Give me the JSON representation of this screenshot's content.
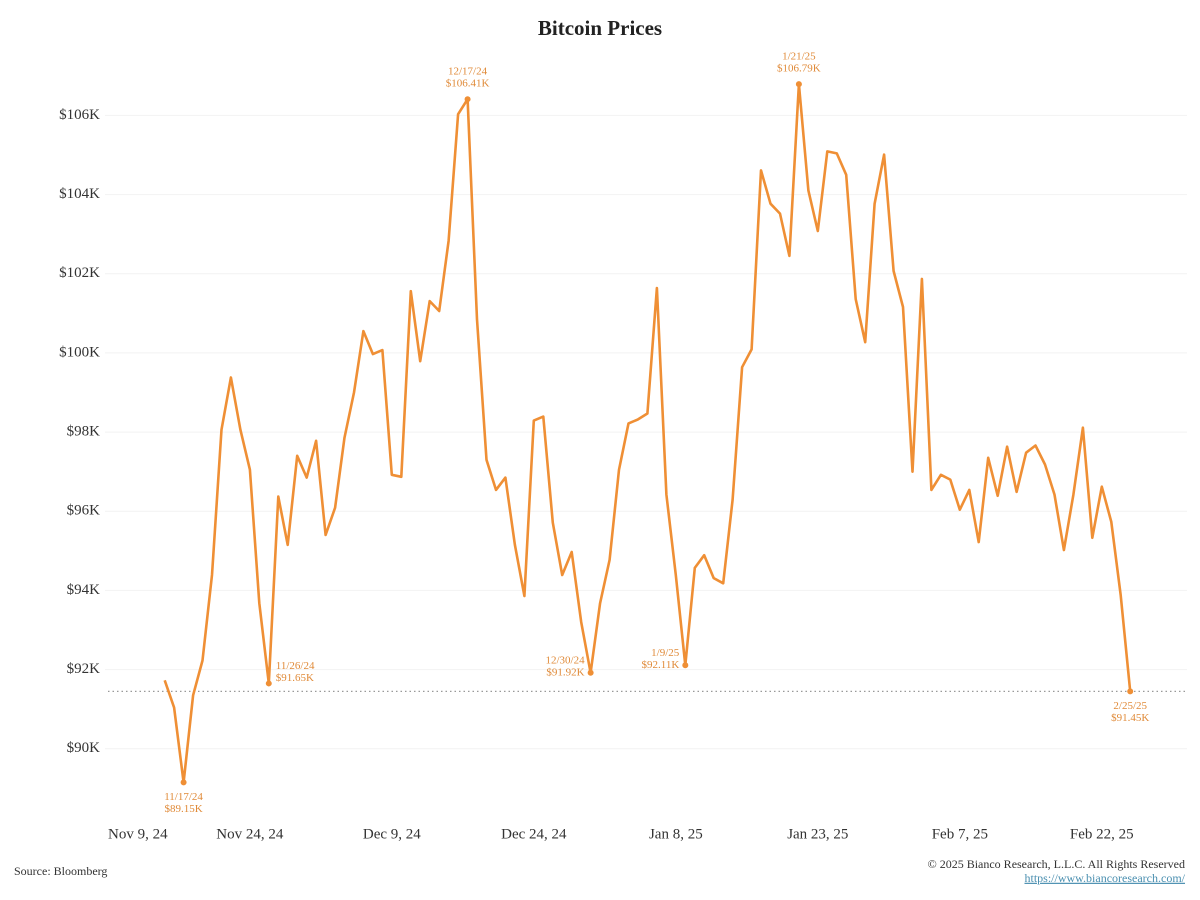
{
  "chart_data": {
    "type": "line",
    "title": "Bitcoin Prices",
    "source": "Source: Bloomberg",
    "copyright": "© 2025 Bianco Research, L.L.C. All Rights Reserved",
    "url": "https://www.biancoresearch.com/",
    "x": [
      "2024-11-15",
      "2024-11-16",
      "2024-11-17",
      "2024-11-18",
      "2024-11-19",
      "2024-11-20",
      "2024-11-21",
      "2024-11-22",
      "2024-11-23",
      "2024-11-24",
      "2024-11-25",
      "2024-11-26",
      "2024-11-27",
      "2024-11-28",
      "2024-11-29",
      "2024-11-30",
      "2024-12-01",
      "2024-12-02",
      "2024-12-03",
      "2024-12-04",
      "2024-12-05",
      "2024-12-06",
      "2024-12-07",
      "2024-12-08",
      "2024-12-09",
      "2024-12-10",
      "2024-12-11",
      "2024-12-12",
      "2024-12-13",
      "2024-12-14",
      "2024-12-15",
      "2024-12-16",
      "2024-12-17",
      "2024-12-18",
      "2024-12-19",
      "2024-12-20",
      "2024-12-21",
      "2024-12-22",
      "2024-12-23",
      "2024-12-24",
      "2024-12-25",
      "2024-12-26",
      "2024-12-27",
      "2024-12-28",
      "2024-12-29",
      "2024-12-30",
      "2024-12-31",
      "2025-01-01",
      "2025-01-02",
      "2025-01-03",
      "2025-01-04",
      "2025-01-05",
      "2025-01-06",
      "2025-01-07",
      "2025-01-08",
      "2025-01-09",
      "2025-01-10",
      "2025-01-11",
      "2025-01-12",
      "2025-01-13",
      "2025-01-14",
      "2025-01-15",
      "2025-01-16",
      "2025-01-17",
      "2025-01-18",
      "2025-01-19",
      "2025-01-20",
      "2025-01-21",
      "2025-01-22",
      "2025-01-23",
      "2025-01-24",
      "2025-01-25",
      "2025-01-26",
      "2025-01-27",
      "2025-01-28",
      "2025-01-29",
      "2025-01-30",
      "2025-01-31",
      "2025-02-01",
      "2025-02-02",
      "2025-02-03",
      "2025-02-04",
      "2025-02-05",
      "2025-02-06",
      "2025-02-07",
      "2025-02-08",
      "2025-02-09",
      "2025-02-10",
      "2025-02-11",
      "2025-02-12",
      "2025-02-13",
      "2025-02-14",
      "2025-02-15",
      "2025-02-16",
      "2025-02-17",
      "2025-02-18",
      "2025-02-19",
      "2025-02-20",
      "2025-02-21",
      "2025-02-22",
      "2025-02-23",
      "2025-02-24",
      "2025-02-25"
    ],
    "series": [
      {
        "name": "Bitcoin",
        "color": "#ef8f35",
        "values": [
          91.73,
          91.04,
          89.15,
          91.35,
          92.23,
          94.39,
          98.06,
          99.38,
          98.06,
          97.05,
          93.68,
          91.65,
          96.37,
          95.15,
          97.4,
          96.85,
          97.78,
          95.4,
          96.09,
          97.86,
          99.0,
          100.55,
          99.97,
          100.07,
          96.92,
          96.87,
          101.56,
          99.79,
          101.31,
          101.06,
          102.83,
          106.03,
          106.41,
          100.85,
          97.3,
          96.54,
          96.85,
          95.15,
          93.86,
          98.29,
          98.39,
          95.71,
          94.39,
          94.97,
          93.2,
          91.92,
          93.68,
          94.77,
          97.05,
          98.22,
          98.32,
          98.47,
          101.64,
          96.42,
          94.39,
          92.11,
          94.57,
          94.89,
          94.31,
          94.18,
          96.29,
          99.64,
          100.09,
          104.61,
          103.77,
          103.52,
          102.45,
          106.79,
          104.1,
          103.08,
          105.09,
          105.04,
          104.5,
          101.36,
          100.27,
          103.77,
          105.01,
          102.07,
          101.16,
          97.0,
          101.87,
          96.54,
          96.92,
          96.8,
          96.04,
          96.54,
          95.22,
          97.35,
          96.39,
          97.63,
          96.49,
          97.48,
          97.66,
          97.18,
          96.42,
          95.02,
          96.42,
          98.11,
          95.33,
          96.62,
          95.73,
          93.88,
          91.45
        ]
      }
    ],
    "annotations": [
      {
        "index": 2,
        "date_label": "11/17/24",
        "value_label": "$89.15K",
        "placement": "below"
      },
      {
        "index": 11,
        "date_label": "11/26/24",
        "value_label": "$91.65K",
        "placement": "right"
      },
      {
        "index": 32,
        "date_label": "12/17/24",
        "value_label": "$106.41K",
        "placement": "above"
      },
      {
        "index": 45,
        "date_label": "12/30/24",
        "value_label": "$91.92K",
        "placement": "left"
      },
      {
        "index": 55,
        "date_label": "1/9/25",
        "value_label": "$92.11K",
        "placement": "left"
      },
      {
        "index": 67,
        "date_label": "1/21/25",
        "value_label": "$106.79K",
        "placement": "above"
      },
      {
        "index": 102,
        "date_label": "2/25/25",
        "value_label": "$91.45K",
        "placement": "below"
      }
    ],
    "last_value_line": true,
    "xlim": [
      "2024-11-05",
      "2025-03-03"
    ],
    "xticks": [
      {
        "value": "2024-11-09",
        "label": "Nov 9, 24"
      },
      {
        "value": "2024-11-24",
        "label": "Nov 24, 24"
      },
      {
        "value": "2024-12-09",
        "label": "Dec 9, 24"
      },
      {
        "value": "2024-12-24",
        "label": "Dec 24, 24"
      },
      {
        "value": "2025-01-08",
        "label": "Jan 8, 25"
      },
      {
        "value": "2025-01-23",
        "label": "Jan 23, 25"
      },
      {
        "value": "2025-02-07",
        "label": "Feb 7, 25"
      },
      {
        "value": "2025-02-22",
        "label": "Feb 22, 25"
      }
    ],
    "ylim": [
      88.2,
      107.4
    ],
    "yticks": [
      {
        "value": 90,
        "label": "$90K"
      },
      {
        "value": 92,
        "label": "$92K"
      },
      {
        "value": 94,
        "label": "$94K"
      },
      {
        "value": 96,
        "label": "$96K"
      },
      {
        "value": 98,
        "label": "$98K"
      },
      {
        "value": 100,
        "label": "$100K"
      },
      {
        "value": 102,
        "label": "$102K"
      },
      {
        "value": 104,
        "label": "$104K"
      },
      {
        "value": 106,
        "label": "$106K"
      }
    ],
    "grid": true
  }
}
